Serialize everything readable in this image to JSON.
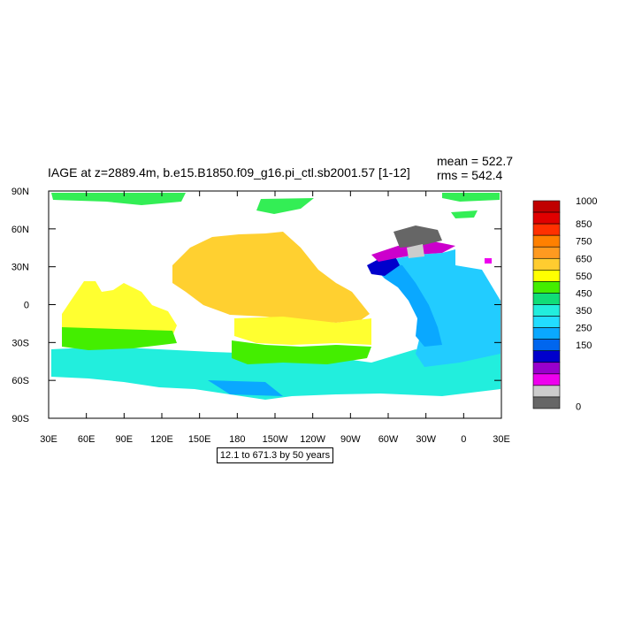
{
  "title": "IAGE at z=2889.4m, b.e15.B1850.f09_g16.pi_ctl.sb2001.57 [1-12]",
  "stats": {
    "mean": "mean = 522.7",
    "rms": "rms = 542.4"
  },
  "contour_note": "12.1 to 671.3 by 50 years",
  "axes": {
    "x_ticks": [
      "30E",
      "60E",
      "90E",
      "120E",
      "150E",
      "180",
      "150W",
      "120W",
      "90W",
      "60W",
      "30W",
      "0",
      "30E"
    ],
    "y_ticks": [
      "90N",
      "60N",
      "30N",
      "0",
      "30S",
      "60S",
      "90S"
    ]
  },
  "colorbar": {
    "labels": [
      "1000",
      "850",
      "750",
      "650",
      "550",
      "450",
      "350",
      "250",
      "150",
      "0"
    ],
    "colors": [
      "#c00000",
      "#e00000",
      "#ff3000",
      "#ff8000",
      "#ff9a20",
      "#ffcc30",
      "#ffff00",
      "#44ee00",
      "#11dd77",
      "#22eedd",
      "#22ddff",
      "#0aa8ff",
      "#0066ee",
      "#0000cc",
      "#9900cc",
      "#ee00ee",
      "#cccccc",
      "#666666"
    ]
  },
  "regions": {
    "land": "#ffffff",
    "pacific": "#ffd030",
    "indian": "#ffff30",
    "southern_ocean": "#22eedd",
    "atlantic": "#22ccff",
    "arctic": "#33ee55"
  }
}
